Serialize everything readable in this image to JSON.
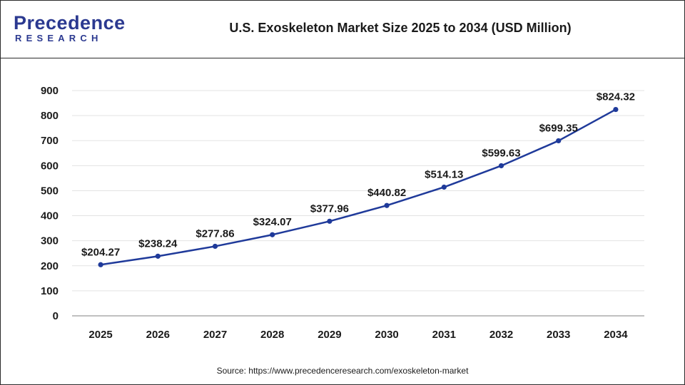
{
  "brand": {
    "name_top": "Precedence",
    "name_bottom": "RESEARCH",
    "color": "#2b3990"
  },
  "header": {
    "title": "U.S. Exoskeleton Market Size 2025 to 2034 (USD Million)"
  },
  "footer": {
    "source": "Source: https://www.precedenceresearch.com/exoskeleton-market"
  },
  "chart_data": {
    "type": "line",
    "title": "U.S. Exoskeleton Market Size 2025 to 2034 (USD Million)",
    "xlabel": "",
    "ylabel": "",
    "categories": [
      "2025",
      "2026",
      "2027",
      "2028",
      "2029",
      "2030",
      "2031",
      "2032",
      "2033",
      "2034"
    ],
    "values": [
      204.27,
      238.24,
      277.86,
      324.07,
      377.96,
      440.82,
      514.13,
      599.63,
      699.35,
      824.32
    ],
    "data_labels": [
      "$204.27",
      "$238.24",
      "$277.86",
      "$324.07",
      "$377.96",
      "$440.82",
      "$514.13",
      "$599.63",
      "$699.35",
      "$824.32"
    ],
    "yticks": [
      "0",
      "100",
      "200",
      "300",
      "400",
      "500",
      "600",
      "700",
      "800",
      "900"
    ],
    "ylim": [
      0,
      900
    ],
    "grid": true,
    "legend": "none",
    "line_color": "#1f3a9a"
  }
}
